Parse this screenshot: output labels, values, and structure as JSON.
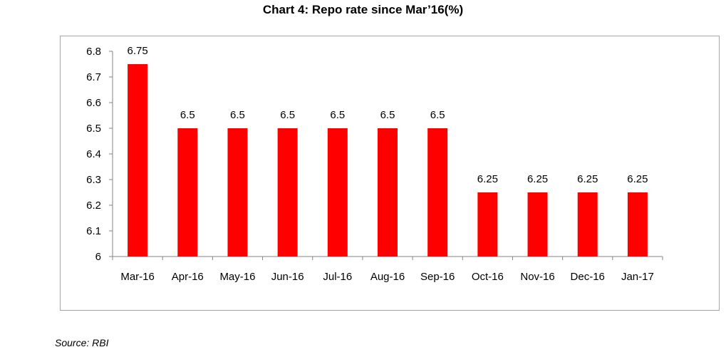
{
  "chart_data": {
    "type": "bar",
    "title": "Chart 4: Repo rate since Mar’16(%)",
    "categories": [
      "Mar-16",
      "Apr-16",
      "May-16",
      "Jun-16",
      "Jul-16",
      "Aug-16",
      "Sep-16",
      "Oct-16",
      "Nov-16",
      "Dec-16",
      "Jan-17"
    ],
    "values": [
      6.75,
      6.5,
      6.5,
      6.5,
      6.5,
      6.5,
      6.5,
      6.25,
      6.25,
      6.25,
      6.25
    ],
    "data_labels": [
      "6.75",
      "6.5",
      "6.5",
      "6.5",
      "6.5",
      "6.5",
      "6.5",
      "6.25",
      "6.25",
      "6.25",
      "6.25"
    ],
    "ylim": [
      6,
      6.8
    ],
    "yticks": [
      "6",
      "6.1",
      "6.2",
      "6.3",
      "6.4",
      "6.5",
      "6.6",
      "6.7",
      "6.8"
    ],
    "xlabel": "",
    "ylabel": "",
    "grid": false,
    "bar_color": "#ff0000"
  },
  "source_text": "Source: RBI"
}
